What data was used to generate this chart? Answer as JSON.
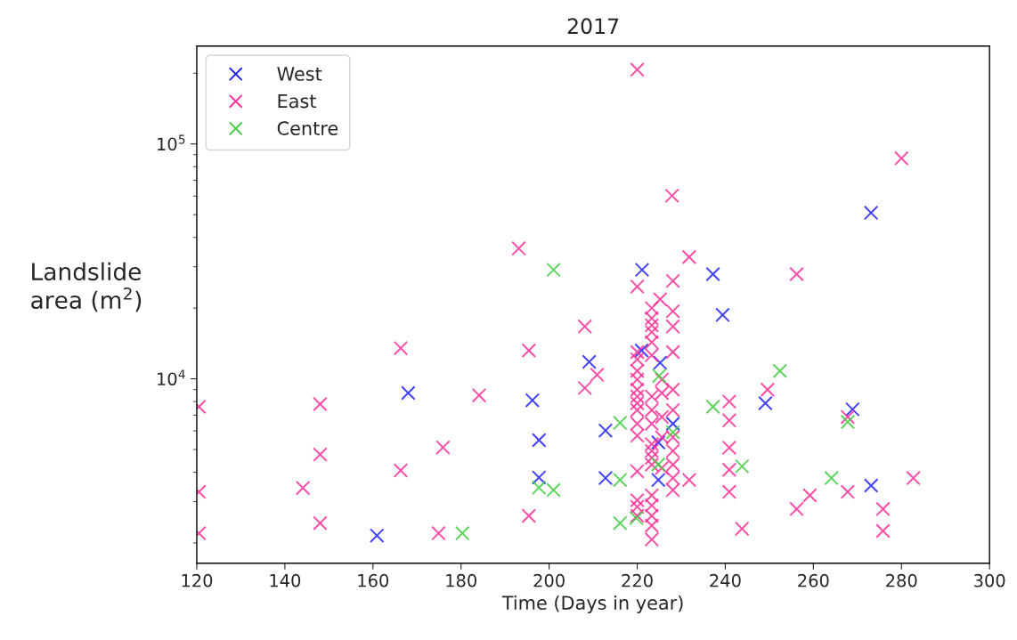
{
  "chart_data": {
    "type": "scatter",
    "title": "2017",
    "xlabel": "Time (Days in year)",
    "ylabel": "Landslide\narea (m$^{2}$)",
    "log": "y",
    "xlim": [
      120,
      300
    ],
    "xticks": [
      120,
      140,
      160,
      180,
      200,
      220,
      240,
      260,
      280,
      300
    ],
    "ylim": [
      1640,
      261000
    ],
    "yticks": [
      {
        "value": 10000,
        "label": "10$^{4}$"
      },
      {
        "value": 100000,
        "label": "10$^{5}$"
      }
    ],
    "marker": "cross",
    "legend": "top left",
    "grid": false,
    "series": [
      {
        "name": "West",
        "color": "#1f1fff",
        "x": [
          160.9,
          168.0,
          196.2,
          197.7,
          197.7,
          209.1,
          212.8,
          212.8,
          221.1,
          221.0,
          225.2,
          228.1,
          224.8,
          224.8,
          237.2,
          239.4,
          249.1,
          268.9,
          273.1,
          273.1
        ],
        "values": [
          2150,
          8700,
          8100,
          5480,
          3800,
          11800,
          6020,
          3780,
          29100,
          13200,
          11700,
          6440,
          5360,
          3710,
          27900,
          18700,
          7870,
          7410,
          50900,
          3510
        ]
      },
      {
        "name": "East",
        "color": "#ff2d95",
        "x": [
          120.5,
          120.5,
          120.5,
          148.0,
          148.0,
          148.0,
          144.1,
          166.3,
          166.3,
          175.9,
          174.9,
          184.1,
          193.1,
          195.4,
          195.4,
          220.0,
          227.9,
          231.8,
          220.0,
          228.1,
          225.2,
          208.1,
          210.9,
          208.1,
          231.8,
          243.8,
          280.0,
          256.2,
          249.6,
          267.8,
          282.7,
          259.2,
          256.2,
          267.8,
          275.8,
          275.8,
          220,
          220,
          220,
          220,
          220,
          220,
          220,
          220,
          220,
          220,
          220,
          220,
          220,
          220,
          223.3,
          223.3,
          223.3,
          223.3,
          223.3,
          223.3,
          223.3,
          223.3,
          223.3,
          223.3,
          223.3,
          223.3,
          223.3,
          223.3,
          223.3,
          223.3,
          223.3,
          223.3,
          225.6,
          225.6,
          225.6,
          225.6,
          225.6,
          228.1,
          228.1,
          228.1,
          228.1,
          228.1,
          228.1,
          228.1,
          228.1,
          228.1,
          228.1,
          240.9,
          240.9,
          240.9,
          240.9,
          240.9
        ],
        "values": [
          7600,
          3300,
          2200,
          7800,
          4760,
          2430,
          3430,
          13500,
          4070,
          5100,
          2200,
          8500,
          35900,
          13200,
          2610,
          207000,
          60200,
          33000,
          24700,
          26100,
          21800,
          16700,
          10400,
          9140,
          3710,
          2300,
          86900,
          27900,
          8990,
          6880,
          3780,
          3190,
          2790,
          3300,
          2790,
          2250,
          13000,
          12100,
          10800,
          9930,
          8990,
          8410,
          7870,
          7360,
          6440,
          5730,
          4040,
          3040,
          2850,
          2610,
          20000,
          18100,
          16900,
          15800,
          14300,
          12600,
          8410,
          7360,
          6440,
          5270,
          4930,
          4610,
          4310,
          3190,
          2890,
          2610,
          2370,
          2070,
          9930,
          8700,
          6880,
          5640,
          4170,
          19400,
          16700,
          13000,
          8990,
          7360,
          5640,
          4930,
          4310,
          3780,
          3360,
          8000,
          6650,
          5090,
          4100,
          3300
        ]
      },
      {
        "name": "Centre",
        "color": "#3fcc3f",
        "x": [
          180.3,
          201.0,
          197.7,
          201.0,
          216.1,
          216.1,
          216.1,
          219.8,
          225.0,
          228.1,
          224.8,
          237.2,
          243.8,
          252.4,
          267.8,
          264.1
        ],
        "values": [
          2200,
          29100,
          3440,
          3360,
          6490,
          3710,
          2430,
          2550,
          10300,
          5920,
          4320,
          7600,
          4240,
          10800,
          6550,
          3780
        ]
      }
    ]
  }
}
